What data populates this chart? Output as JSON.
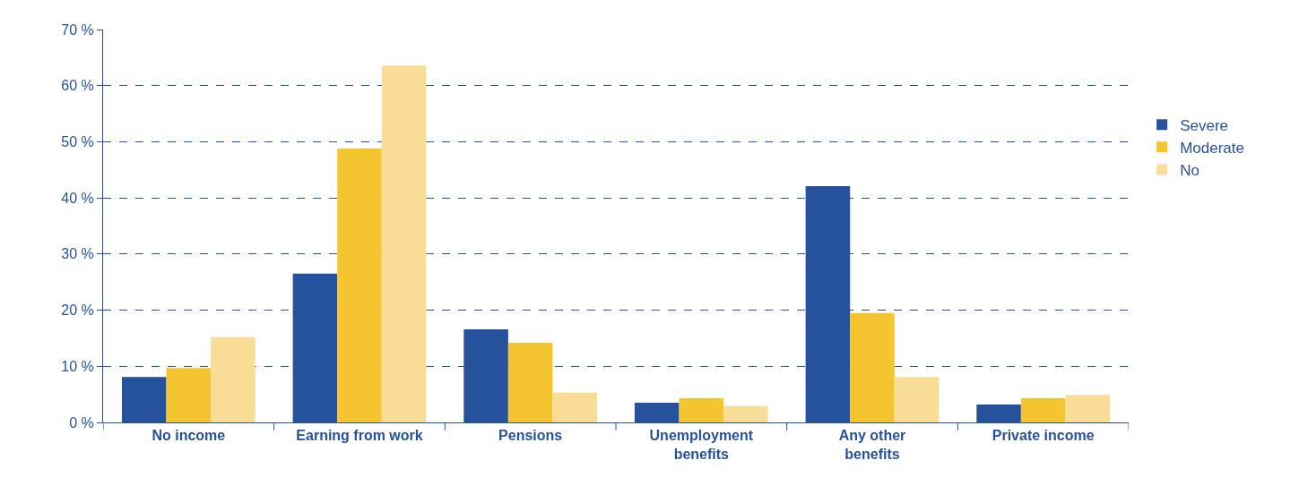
{
  "chart_data": {
    "type": "bar",
    "categories": [
      "No income",
      "Earning from work",
      "Pensions",
      "Unemployment\nbenefits",
      "Any other\nbenefits",
      "Private income"
    ],
    "series": [
      {
        "name": "Severe",
        "color": "#26519c",
        "values": [
          8.1,
          26.5,
          16.6,
          3.5,
          42.1,
          3.2
        ]
      },
      {
        "name": "Moderate",
        "color": "#f5c431",
        "values": [
          9.7,
          48.8,
          14.2,
          4.3,
          19.5,
          4.3
        ]
      },
      {
        "name": "No",
        "color": "#f9dc96",
        "values": [
          15.2,
          63.6,
          5.3,
          2.9,
          8.1,
          4.9
        ]
      }
    ],
    "ylim": [
      0,
      70
    ],
    "yticks": [
      {
        "value": 0,
        "label": "0 %"
      },
      {
        "value": 10,
        "label": "10 %"
      },
      {
        "value": 20,
        "label": "20 %"
      },
      {
        "value": 30,
        "label": "30 %"
      },
      {
        "value": 40,
        "label": "40 %"
      },
      {
        "value": 50,
        "label": "50 %"
      },
      {
        "value": 60,
        "label": "60 %"
      },
      {
        "value": 70,
        "label": "70 %"
      }
    ],
    "grid": "y",
    "legend": "right"
  }
}
